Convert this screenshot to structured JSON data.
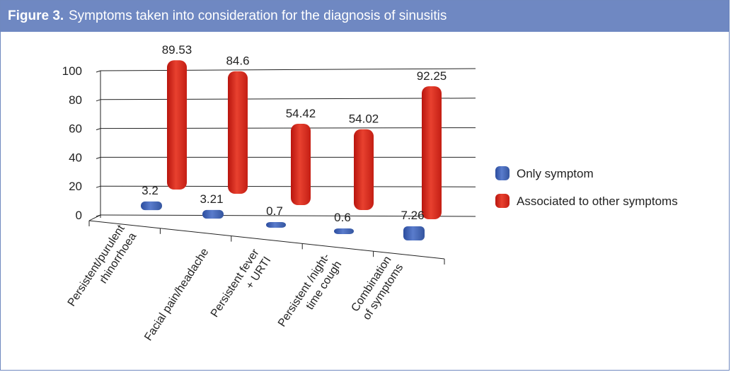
{
  "header": {
    "figure_label": "Figure 3.",
    "title": "Symptoms taken into consideration for the diagnosis of sinusitis"
  },
  "chart_data": {
    "type": "bar",
    "subtype": "3d-floating-columns",
    "title": "Symptoms taken into consideration for the diagnosis of sinusitis",
    "xlabel": "",
    "ylabel": "",
    "ylim": [
      0,
      100
    ],
    "yticks": [
      0,
      20,
      40,
      60,
      80,
      100
    ],
    "grid": true,
    "legend_position": "right",
    "categories": [
      [
        "Persistent/purulent",
        "rhinorrhoea"
      ],
      [
        "Facial pain/headache"
      ],
      [
        "Persistent fever",
        "+ URTI"
      ],
      [
        "Persistent /night-",
        "time cough"
      ],
      [
        "Combination",
        "of symptoms"
      ]
    ],
    "series": [
      {
        "name": "Only symptom",
        "color": "#3f63b6",
        "values": [
          3.2,
          3.21,
          0.7,
          0.6,
          7.26
        ],
        "labels": [
          "3.2",
          "3.21",
          "0.7",
          "0.6",
          "7.26"
        ]
      },
      {
        "name": "Associated to other symptoms",
        "color": "#d93325",
        "values": [
          89.53,
          84.6,
          54.42,
          54.02,
          92.25
        ],
        "labels": [
          "89.53",
          "84.6",
          "54.42",
          "54.02",
          "92.25"
        ]
      }
    ]
  }
}
